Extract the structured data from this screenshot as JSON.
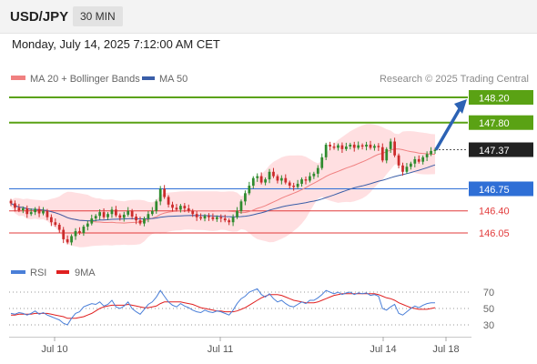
{
  "header": {
    "symbol": "USD/JPY",
    "interval": "30 MIN",
    "datetime": "Monday, July 14, 2025 7:12:00 AM CET"
  },
  "legend": {
    "ma20_bb": "MA 20 + Bollinger Bands",
    "ma50": "MA 50",
    "credit": "Research © 2025 Trading Central"
  },
  "chart_data": [
    {
      "type": "candlestick",
      "title": "",
      "levels": [
        {
          "value": 148.2,
          "label": "148.20",
          "kind": "target",
          "color": "#5aa214"
        },
        {
          "value": 147.8,
          "label": "147.80",
          "kind": "target",
          "color": "#5aa214"
        },
        {
          "value": 147.37,
          "label": "147.37",
          "kind": "last-price",
          "color": "#222222"
        },
        {
          "value": 146.75,
          "label": "146.75",
          "kind": "pivot",
          "color": "#2f6fd6"
        },
        {
          "value": 146.4,
          "label": "146.40",
          "kind": "support",
          "color": "#e23b3b"
        },
        {
          "value": 146.05,
          "label": "146.05",
          "kind": "support",
          "color": "#e23b3b"
        }
      ],
      "x_tick_labels": [
        "Jul 10",
        "Jul 11",
        "Jul 14",
        "Jul 18"
      ],
      "close": [
        146.52,
        146.45,
        146.41,
        146.44,
        146.35,
        146.38,
        146.43,
        146.36,
        146.4,
        146.3,
        146.22,
        146.18,
        146.1,
        145.95,
        145.9,
        146.0,
        146.08,
        146.05,
        146.15,
        146.2,
        146.28,
        146.32,
        146.38,
        146.3,
        146.35,
        146.42,
        146.33,
        146.29,
        146.34,
        146.4,
        146.31,
        146.25,
        146.2,
        146.28,
        146.35,
        146.4,
        146.55,
        146.75,
        146.62,
        146.5,
        146.45,
        146.42,
        146.48,
        146.44,
        146.4,
        146.35,
        146.3,
        146.28,
        146.32,
        146.3,
        146.27,
        146.3,
        146.28,
        146.25,
        146.22,
        146.3,
        146.4,
        146.55,
        146.68,
        146.8,
        146.92,
        146.95,
        146.85,
        146.9,
        147.02,
        146.95,
        146.88,
        146.92,
        146.85,
        146.8,
        146.78,
        146.83,
        146.9,
        146.88,
        146.95,
        146.99,
        147.08,
        147.25,
        147.45,
        147.42,
        147.4,
        147.44,
        147.38,
        147.42,
        147.45,
        147.4,
        147.44,
        147.42,
        147.45,
        147.4,
        147.43,
        147.41,
        147.2,
        147.38,
        147.5,
        147.28,
        147.12,
        147.02,
        147.1,
        147.15,
        147.22,
        147.18,
        147.25,
        147.3,
        147.35,
        147.37
      ]
    },
    {
      "type": "line",
      "title": "",
      "series": [
        {
          "name": "RSI",
          "color": "#4a7fd8"
        },
        {
          "name": "9MA",
          "color": "#e02020"
        }
      ],
      "y_ticks": [
        70,
        50,
        30
      ],
      "ylim": [
        20,
        80
      ],
      "rsi": [
        44,
        43,
        45,
        44,
        42,
        44,
        47,
        43,
        45,
        42,
        40,
        38,
        36,
        32,
        30,
        38,
        44,
        46,
        52,
        54,
        56,
        55,
        58,
        53,
        55,
        60,
        52,
        50,
        53,
        58,
        50,
        46,
        43,
        49,
        55,
        58,
        64,
        72,
        65,
        58,
        54,
        52,
        56,
        53,
        51,
        48,
        46,
        45,
        48,
        46,
        45,
        47,
        46,
        44,
        42,
        48,
        56,
        62,
        65,
        70,
        72,
        74,
        67,
        64,
        68,
        62,
        58,
        60,
        56,
        53,
        52,
        55,
        58,
        56,
        60,
        60,
        63,
        67,
        72,
        70,
        68,
        70,
        67,
        69,
        70,
        67,
        69,
        68,
        69,
        66,
        67,
        65,
        50,
        48,
        52,
        55,
        44,
        42,
        46,
        50,
        53,
        51,
        54,
        56,
        57,
        57
      ],
      "ma9": [
        42,
        42,
        43,
        43,
        43,
        43,
        44,
        44,
        44,
        44,
        43,
        42,
        41,
        40,
        38,
        38,
        38,
        39,
        40,
        42,
        44,
        47,
        50,
        52,
        53,
        54,
        54,
        54,
        54,
        55,
        54,
        53,
        52,
        51,
        51,
        52,
        53,
        56,
        58,
        58,
        58,
        58,
        58,
        57,
        56,
        55,
        53,
        51,
        50,
        49,
        48,
        47,
        47,
        46,
        46,
        46,
        47,
        49,
        51,
        54,
        57,
        60,
        63,
        65,
        67,
        67,
        67,
        66,
        64,
        62,
        60,
        59,
        58,
        57,
        57,
        57,
        58,
        60,
        62,
        64,
        66,
        67,
        68,
        68,
        68,
        68,
        68,
        68,
        68,
        68,
        68,
        67,
        65,
        63,
        62,
        60,
        57,
        55,
        53,
        51,
        50,
        49,
        49,
        49,
        50,
        51
      ]
    }
  ],
  "colors": {
    "up_candle": "#2e8b2e",
    "down_candle": "#cc2b2b",
    "ma20": "#f08080",
    "ma50": "#3a5ea8",
    "bollinger_fill": "#ffd9dc",
    "target_arrow": "#2c62b4"
  }
}
